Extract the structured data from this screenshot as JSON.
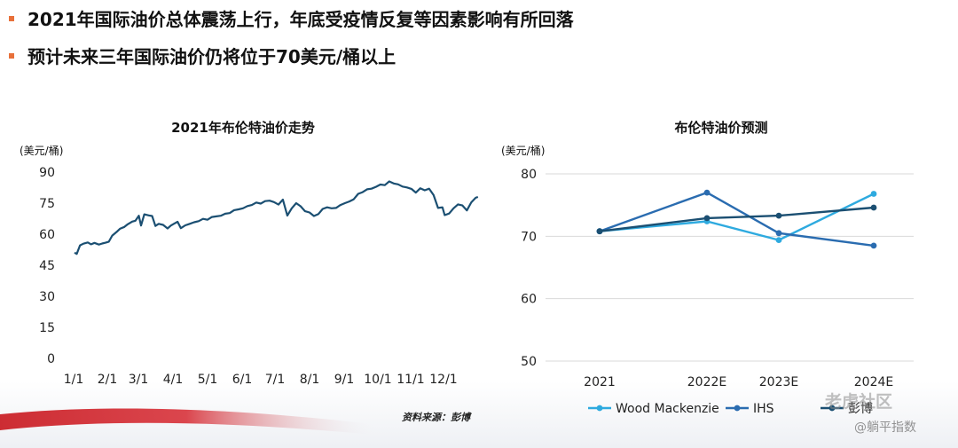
{
  "bullets": [
    "2021年国际油价总体震荡上行，年底受疫情反复等因素影响有所回落",
    "预计未来三年国际油价仍将位于70美元/桶以上"
  ],
  "source_note": "资料来源：彭博",
  "watermark": {
    "line1": "老虎社区",
    "line2": "@躺平指数"
  },
  "colors": {
    "accent_bullet": "#e8703a",
    "dark_series": "#1b4f72",
    "brand_red": "#c8161d"
  },
  "chart_data": [
    {
      "type": "line",
      "title": "2021年布伦特油价走势",
      "ylabel": "(美元/桶)",
      "ylim": [
        0,
        90
      ],
      "yticks": [
        "0",
        "15",
        "30",
        "45",
        "60",
        "75",
        "90"
      ],
      "xticks": [
        "1/1",
        "2/1",
        "3/1",
        "4/1",
        "5/1",
        "6/1",
        "7/1",
        "8/1",
        "9/1",
        "10/1",
        "11/1",
        "12/1"
      ],
      "grid": false,
      "series": [
        {
          "x": [
            0,
            2,
            5,
            8,
            12,
            15,
            18,
            22,
            25,
            28,
            31,
            34,
            38,
            41,
            45,
            48,
            52,
            55,
            58,
            60,
            63,
            67,
            70,
            73,
            76,
            80,
            84,
            87,
            90,
            93,
            96,
            100,
            104,
            108,
            112,
            116,
            120,
            124,
            128,
            132,
            136,
            140,
            144,
            148,
            152,
            156,
            160,
            164,
            168,
            172,
            176,
            180,
            184,
            188,
            192,
            196,
            200,
            204,
            208,
            212,
            216,
            220,
            224,
            228,
            232,
            236,
            240,
            244,
            248,
            252,
            256,
            260,
            264,
            268,
            272,
            276,
            280,
            284,
            288,
            292,
            296,
            300,
            304,
            308,
            312,
            316,
            320,
            324,
            328,
            332,
            334,
            338,
            342,
            346,
            350,
            354,
            358,
            362,
            364
          ],
          "values": [
            51.1,
            50.5,
            54.6,
            55.4,
            56.0,
            55.1,
            55.8,
            55.0,
            55.5,
            55.9,
            56.4,
            59.3,
            61.1,
            62.6,
            63.5,
            64.8,
            66.1,
            66.5,
            68.9,
            64.2,
            69.6,
            69.1,
            68.8,
            64.0,
            65.0,
            64.5,
            62.8,
            64.2,
            65.1,
            66.0,
            62.9,
            64.3,
            65.0,
            65.8,
            66.3,
            67.4,
            67.0,
            68.3,
            68.6,
            68.9,
            69.9,
            70.2,
            71.6,
            72.0,
            72.5,
            73.6,
            74.1,
            75.3,
            74.8,
            76.0,
            76.2,
            75.5,
            74.3,
            76.7,
            69.0,
            72.5,
            75.0,
            73.5,
            71.1,
            70.5,
            68.8,
            69.7,
            72.2,
            73.0,
            72.5,
            72.7,
            74.1,
            75.0,
            75.8,
            76.9,
            79.5,
            80.3,
            81.7,
            82.0,
            82.9,
            84.0,
            83.7,
            85.5,
            84.5,
            84.1,
            83.0,
            82.6,
            81.9,
            80.1,
            82.2,
            81.2,
            82.0,
            78.9,
            72.7,
            73.0,
            69.2,
            70.0,
            72.5,
            74.4,
            73.9,
            71.5,
            75.4,
            77.6,
            78.0
          ]
        }
      ]
    },
    {
      "type": "line",
      "title": "布伦特油价预测",
      "ylabel": "(美元/桶)",
      "ylim": [
        50,
        80
      ],
      "yticks": [
        "50",
        "60",
        "70",
        "80"
      ],
      "categories": [
        "2021",
        "2022E",
        "2023E",
        "2024E"
      ],
      "legend": "bottom",
      "series": [
        {
          "name": "Wood Mackenzie",
          "color": "#2eaadf",
          "values": [
            70.8,
            72.4,
            69.4,
            76.8
          ]
        },
        {
          "name": "IHS",
          "color": "#2a6cb0",
          "values": [
            70.8,
            77.0,
            70.5,
            68.5
          ]
        },
        {
          "name": "彭博",
          "color": "#1b4f72",
          "values": [
            70.8,
            72.9,
            73.3,
            74.6
          ]
        }
      ]
    }
  ]
}
